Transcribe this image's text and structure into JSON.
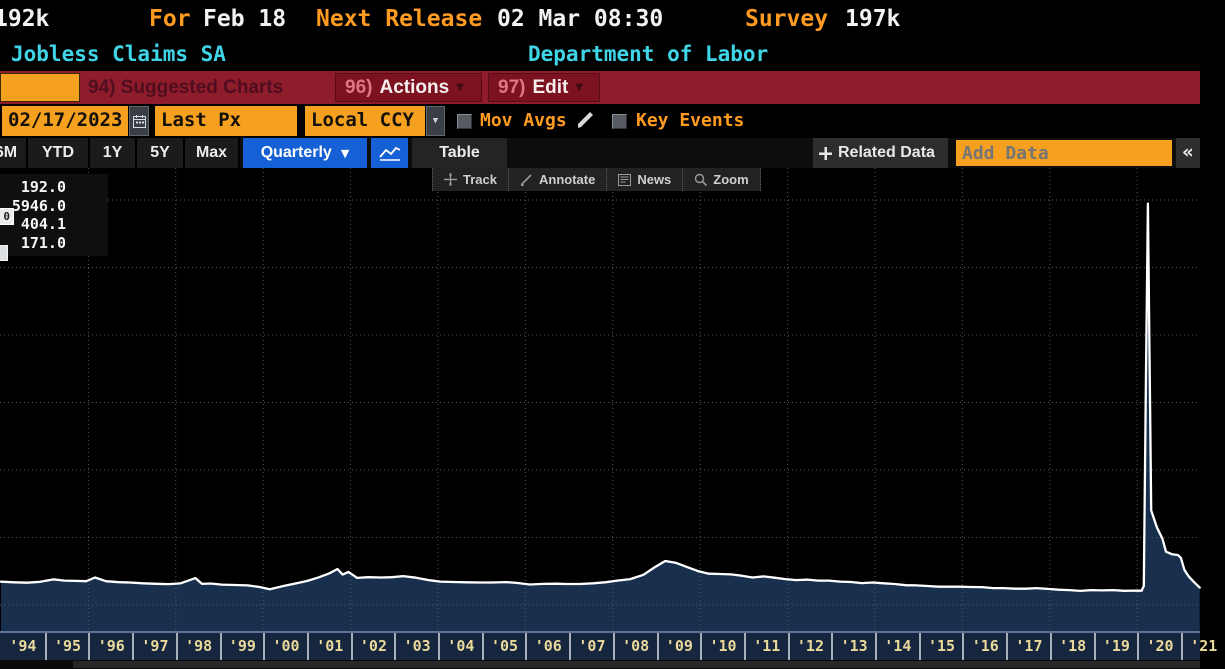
{
  "header": {
    "last_value": "192k",
    "for_label": "For",
    "for_value": "Feb 18",
    "next_release_label": "Next Release",
    "next_release_value": "02 Mar 08:30",
    "survey_label": "Survey",
    "survey_value": "197k",
    "security_name": "Jobless Claims SA",
    "source": "Department of Labor"
  },
  "menubar": {
    "suggested_label": "94) Suggested Charts",
    "actions_num": "96)",
    "actions_label": "Actions",
    "edit_num": "97)",
    "edit_label": "Edit"
  },
  "toolbar": {
    "date_value": "02/17/2023",
    "price_field_value": "Last Px",
    "currency_field_value": "Local CCY",
    "mov_avgs_label": "Mov Avgs",
    "key_events_label": "Key Events"
  },
  "tabs": {
    "ranges": [
      "6M",
      "YTD",
      "1Y",
      "5Y",
      "Max"
    ],
    "period_selected": "Quarterly",
    "table_label": "Table",
    "related_data_label": "Related Data",
    "add_data_placeholder": "Add Data"
  },
  "chart_toolbar": {
    "track": "Track",
    "annotate": "Annotate",
    "news": "News",
    "zoom": "Zoom"
  },
  "legend": {
    "last": "192.0",
    "high": "5946.0",
    "average": "404.1",
    "low": "171.0",
    "high_marker_text": "0"
  },
  "icons": {
    "dropdown_caret": "▼",
    "collapse_chevrons": "«"
  },
  "chart_data": {
    "type": "area",
    "title": "Jobless Claims SA",
    "source": "Department of Labor",
    "period": "Quarterly",
    "y_unit": "thousands of claims (k)",
    "stats": {
      "last": 192.0,
      "high": 5946.0,
      "average": 404.1,
      "low": 171.0
    },
    "x_range_years": [
      1994,
      2021.45
    ],
    "ylim": [
      -385,
      6475
    ],
    "y_gridline_values": [
      0,
      1000,
      2000,
      3000,
      4000,
      5000,
      6000
    ],
    "x_gridline_years": [
      1996,
      1998,
      2000,
      2002,
      2004,
      2006,
      2008,
      2010,
      2012,
      2014,
      2016,
      2018,
      2020
    ],
    "x_tick_labels": [
      "'94",
      "'95",
      "'96",
      "'97",
      "'98",
      "'99",
      "'00",
      "'01",
      "'02",
      "'03",
      "'04",
      "'05",
      "'06",
      "'07",
      "'08",
      "'09",
      "'10",
      "'11",
      "'12",
      "'13",
      "'14",
      "'15",
      "'16",
      "'17",
      "'18",
      "'19",
      "'20",
      "'21"
    ],
    "series": [
      {
        "name": "Jobless Claims SA",
        "points": [
          [
            1994.0,
            345
          ],
          [
            1994.3,
            336
          ],
          [
            1994.6,
            331
          ],
          [
            1994.9,
            343
          ],
          [
            1995.2,
            380
          ],
          [
            1995.45,
            362
          ],
          [
            1995.7,
            357
          ],
          [
            1995.95,
            352
          ],
          [
            1996.15,
            408
          ],
          [
            1996.4,
            352
          ],
          [
            1996.7,
            338
          ],
          [
            1996.95,
            333
          ],
          [
            1997.25,
            322
          ],
          [
            1997.55,
            314
          ],
          [
            1997.85,
            310
          ],
          [
            1998.1,
            320
          ],
          [
            1998.45,
            398
          ],
          [
            1998.6,
            312
          ],
          [
            1998.8,
            318
          ],
          [
            1999.05,
            302
          ],
          [
            1999.35,
            296
          ],
          [
            1999.65,
            290
          ],
          [
            1999.9,
            268
          ],
          [
            2000.15,
            232
          ],
          [
            2000.45,
            280
          ],
          [
            2000.75,
            320
          ],
          [
            2001.0,
            355
          ],
          [
            2001.25,
            405
          ],
          [
            2001.5,
            465
          ],
          [
            2001.7,
            533
          ],
          [
            2001.82,
            450
          ],
          [
            2001.95,
            490
          ],
          [
            2002.15,
            402
          ],
          [
            2002.4,
            412
          ],
          [
            2002.7,
            408
          ],
          [
            2002.95,
            412
          ],
          [
            2003.2,
            428
          ],
          [
            2003.5,
            405
          ],
          [
            2003.8,
            368
          ],
          [
            2004.05,
            346
          ],
          [
            2004.35,
            341
          ],
          [
            2004.65,
            337
          ],
          [
            2004.95,
            333
          ],
          [
            2005.25,
            334
          ],
          [
            2005.55,
            339
          ],
          [
            2005.8,
            328
          ],
          [
            2006.1,
            303
          ],
          [
            2006.4,
            312
          ],
          [
            2006.7,
            315
          ],
          [
            2006.95,
            311
          ],
          [
            2007.25,
            311
          ],
          [
            2007.55,
            321
          ],
          [
            2007.85,
            338
          ],
          [
            2008.1,
            362
          ],
          [
            2008.4,
            384
          ],
          [
            2008.7,
            448
          ],
          [
            2008.95,
            555
          ],
          [
            2009.2,
            652
          ],
          [
            2009.45,
            624
          ],
          [
            2009.7,
            562
          ],
          [
            2009.95,
            502
          ],
          [
            2010.2,
            464
          ],
          [
            2010.45,
            459
          ],
          [
            2010.7,
            454
          ],
          [
            2010.95,
            434
          ],
          [
            2011.2,
            407
          ],
          [
            2011.45,
            424
          ],
          [
            2011.7,
            404
          ],
          [
            2011.95,
            384
          ],
          [
            2012.2,
            369
          ],
          [
            2012.45,
            377
          ],
          [
            2012.7,
            362
          ],
          [
            2012.95,
            361
          ],
          [
            2013.2,
            347
          ],
          [
            2013.45,
            341
          ],
          [
            2013.7,
            324
          ],
          [
            2013.95,
            334
          ],
          [
            2014.2,
            321
          ],
          [
            2014.45,
            311
          ],
          [
            2014.7,
            294
          ],
          [
            2014.95,
            291
          ],
          [
            2015.2,
            282
          ],
          [
            2015.45,
            271
          ],
          [
            2015.7,
            271
          ],
          [
            2015.95,
            271
          ],
          [
            2016.2,
            267
          ],
          [
            2016.45,
            265
          ],
          [
            2016.7,
            251
          ],
          [
            2016.95,
            251
          ],
          [
            2017.2,
            242
          ],
          [
            2017.45,
            241
          ],
          [
            2017.7,
            251
          ],
          [
            2017.95,
            239
          ],
          [
            2018.2,
            227
          ],
          [
            2018.45,
            221
          ],
          [
            2018.7,
            209
          ],
          [
            2018.95,
            221
          ],
          [
            2019.2,
            217
          ],
          [
            2019.45,
            221
          ],
          [
            2019.7,
            211
          ],
          [
            2019.95,
            214
          ],
          [
            2020.1,
            212
          ],
          [
            2020.15,
            282
          ],
          [
            2020.2,
            3307
          ],
          [
            2020.245,
            5946
          ],
          [
            2020.32,
            1400
          ],
          [
            2020.45,
            1150
          ],
          [
            2020.58,
            980
          ],
          [
            2020.66,
            790
          ],
          [
            2020.8,
            751
          ],
          [
            2020.93,
            741
          ],
          [
            2021.0,
            700
          ],
          [
            2021.08,
            520
          ],
          [
            2021.18,
            420
          ],
          [
            2021.3,
            340
          ],
          [
            2021.43,
            258
          ]
        ]
      }
    ]
  }
}
